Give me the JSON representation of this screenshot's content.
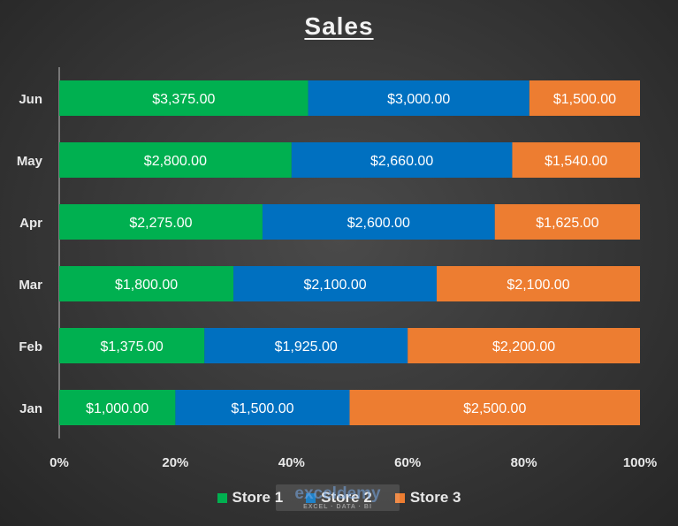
{
  "chart_data": {
    "type": "bar",
    "orientation": "horizontal",
    "stacking": "percent",
    "title": "Sales",
    "xlabel": "",
    "ylabel": "",
    "xlim": [
      0,
      100
    ],
    "categories": [
      "Jan",
      "Feb",
      "Mar",
      "Apr",
      "May",
      "Jun"
    ],
    "x_tick_labels": [
      "0%",
      "20%",
      "40%",
      "60%",
      "80%",
      "100%"
    ],
    "series": [
      {
        "name": "Store 1",
        "color": "#00b050",
        "values": [
          1000,
          1375,
          1800,
          2275,
          2800,
          3375
        ],
        "labels": [
          "$1,000.00",
          "$1,375.00",
          "$1,800.00",
          "$2,275.00",
          "$2,800.00",
          "$3,375.00"
        ]
      },
      {
        "name": "Store 2",
        "color": "#0070c0",
        "values": [
          1500,
          1925,
          2100,
          2600,
          2660,
          3000
        ],
        "labels": [
          "$1,500.00",
          "$1,925.00",
          "$2,100.00",
          "$2,600.00",
          "$2,660.00",
          "$3,000.00"
        ]
      },
      {
        "name": "Store 3",
        "color": "#ed7d31",
        "values": [
          2500,
          2200,
          2100,
          1625,
          1540,
          1500
        ],
        "labels": [
          "$2,500.00",
          "$2,200.00",
          "$2,100.00",
          "$1,625.00",
          "$1,540.00",
          "$1,500.00"
        ]
      }
    ],
    "grid": false,
    "legend_position": "bottom"
  },
  "watermark": {
    "text": "exceldemy",
    "subtext": "EXCEL · DATA · BI"
  }
}
